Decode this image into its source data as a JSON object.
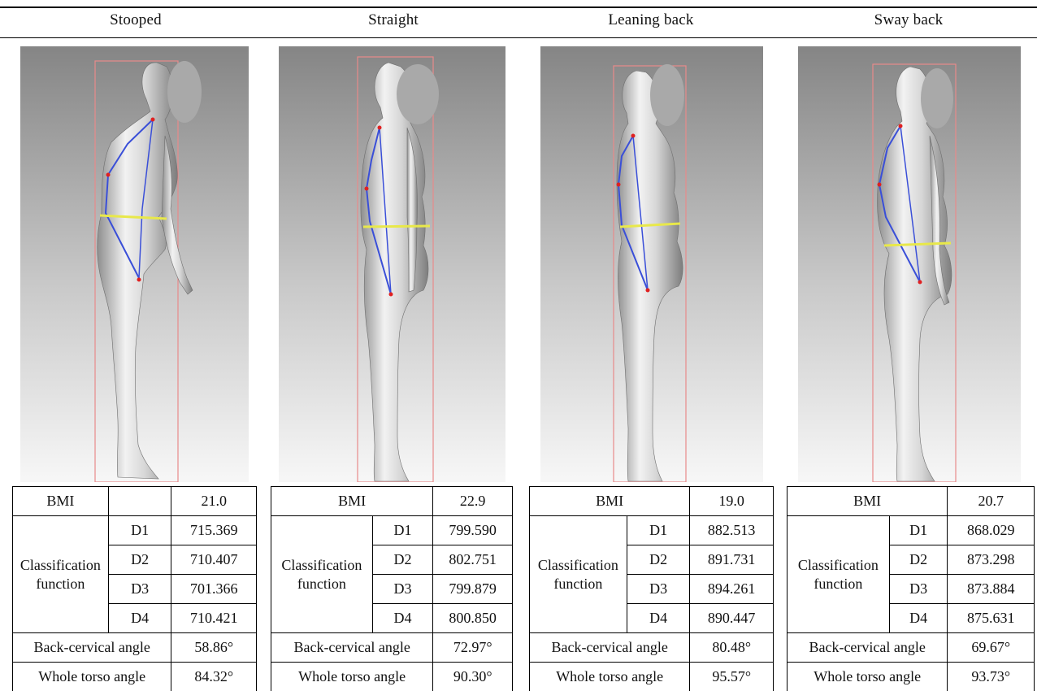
{
  "figure": {
    "columns": [
      {
        "posture": "Stooped",
        "bmi_label": "BMI",
        "bmi": "21.0",
        "classification_label_1": "Classification",
        "classification_label_2": "function",
        "functions": [
          {
            "name": "D1",
            "value": "715.369"
          },
          {
            "name": "D2",
            "value": "710.407"
          },
          {
            "name": "D3",
            "value": "701.366"
          },
          {
            "name": "D4",
            "value": "710.421"
          }
        ],
        "back_cervical_label": "Back-cervical angle",
        "back_cervical_angle": "58.86°",
        "whole_torso_label": "Whole torso angle",
        "whole_torso_angle": "84.32°"
      },
      {
        "posture": "Straight",
        "bmi_label": "BMI",
        "bmi": "22.9",
        "classification_label_1": "Classification",
        "classification_label_2": "function",
        "functions": [
          {
            "name": "D1",
            "value": "799.590"
          },
          {
            "name": "D2",
            "value": "802.751"
          },
          {
            "name": "D3",
            "value": "799.879"
          },
          {
            "name": "D4",
            "value": "800.850"
          }
        ],
        "back_cervical_label": "Back-cervical angle",
        "back_cervical_angle": "72.97°",
        "whole_torso_label": "Whole torso angle",
        "whole_torso_angle": "90.30°"
      },
      {
        "posture": "Leaning back",
        "bmi_label": "BMI",
        "bmi": "19.0",
        "classification_label_1": "Classification",
        "classification_label_2": "function",
        "functions": [
          {
            "name": "D1",
            "value": "882.513"
          },
          {
            "name": "D2",
            "value": "891.731"
          },
          {
            "name": "D3",
            "value": "894.261"
          },
          {
            "name": "D4",
            "value": "890.447"
          }
        ],
        "back_cervical_label": "Back-cervical angle",
        "back_cervical_angle": "80.48°",
        "whole_torso_label": "Whole torso angle",
        "whole_torso_angle": "95.57°"
      },
      {
        "posture": "Sway back",
        "bmi_label": "BMI",
        "bmi": "20.7",
        "classification_label_1": "Classification",
        "classification_label_2": "function",
        "functions": [
          {
            "name": "D1",
            "value": "868.029"
          },
          {
            "name": "D2",
            "value": "873.298"
          },
          {
            "name": "D3",
            "value": "873.884"
          },
          {
            "name": "D4",
            "value": "875.631"
          }
        ],
        "back_cervical_label": "Back-cervical angle",
        "back_cervical_angle": "69.67°",
        "whole_torso_label": "Whole torso angle",
        "whole_torso_angle": "93.73°"
      }
    ]
  },
  "colors": {
    "bounding_box": "#e88a8a",
    "spine_line": "#3a4fd8",
    "waist_line": "#e8e84a",
    "landmark": "#e02020",
    "background_top": "#888888",
    "background_bottom": "#f6f6f6",
    "face_mask": "#a9a9a9"
  }
}
